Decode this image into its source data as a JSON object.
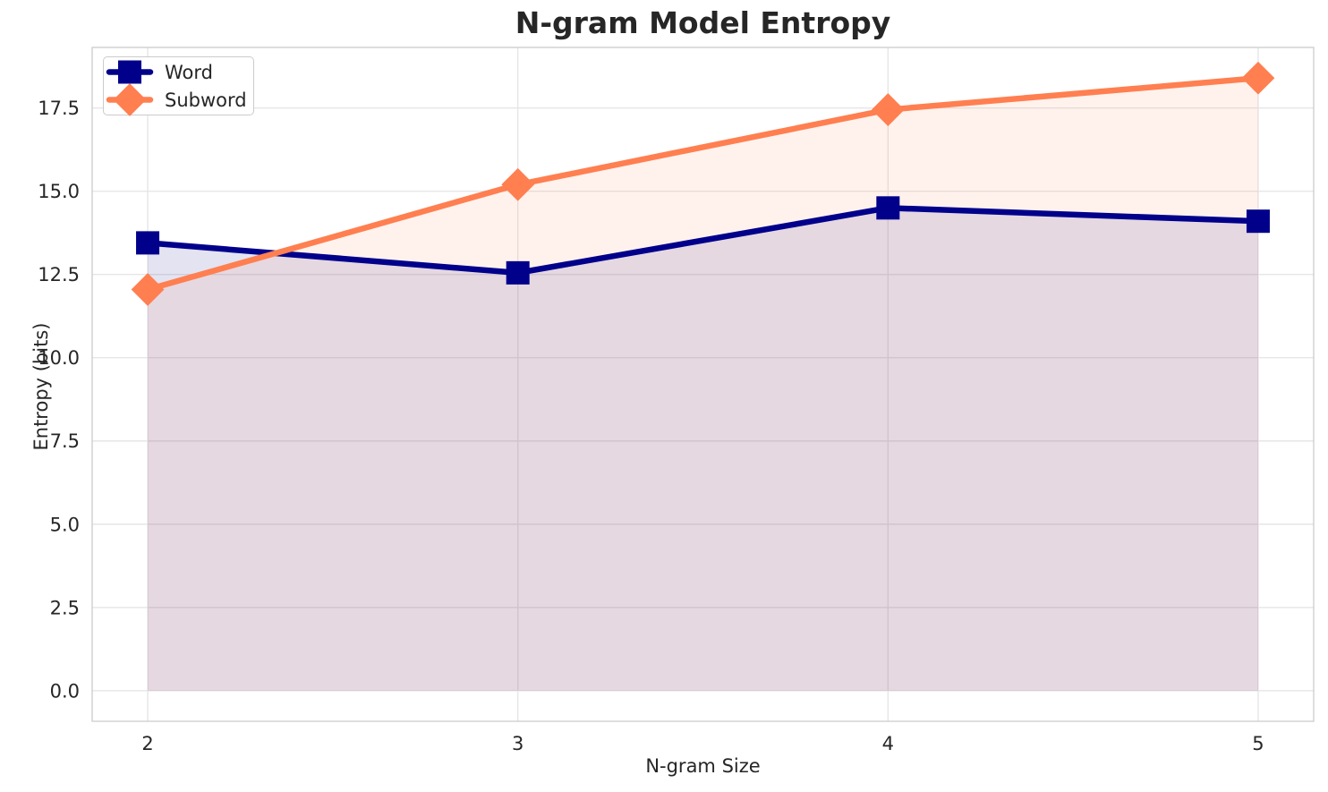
{
  "chart_data": {
    "type": "line",
    "title": "N-gram Model Entropy",
    "xlabel": "N-gram Size",
    "ylabel": "Entropy (bits)",
    "x": [
      2,
      3,
      4,
      5
    ],
    "series": [
      {
        "name": "Word",
        "values": [
          13.45,
          12.55,
          14.5,
          14.1
        ],
        "color": "#00008B",
        "fill": "rgba(0,0,139,0.11)",
        "marker": "square"
      },
      {
        "name": "Subword",
        "values": [
          12.05,
          15.2,
          17.45,
          18.4
        ],
        "color": "#FF7F50",
        "fill": "rgba(255,127,80,0.10)",
        "marker": "diamond"
      }
    ],
    "area_baseline": 0,
    "xlim": [
      1.85,
      5.15
    ],
    "ylim": [
      -0.92,
      19.32
    ],
    "xticks": [
      2,
      3,
      4,
      5
    ],
    "xtick_labels": [
      "2",
      "3",
      "4",
      "5"
    ],
    "yticks": [
      0,
      2.5,
      5,
      7.5,
      10,
      12.5,
      15,
      17.5
    ],
    "ytick_labels": [
      "0.0",
      "2.5",
      "5.0",
      "7.5",
      "10.0",
      "12.5",
      "15.0",
      "17.5"
    ],
    "grid": true,
    "line_width": 6.5,
    "marker_size": 26,
    "legend": {
      "position": "upper left",
      "entries": [
        "Word",
        "Subword"
      ]
    }
  },
  "styles": {
    "background": "#ffffff",
    "text_color": "#262626",
    "grid_color": "#e6e6e6",
    "spine_color": "#cbcbcb",
    "accent_word": "#00008B",
    "accent_subword": "#FF7F50"
  }
}
